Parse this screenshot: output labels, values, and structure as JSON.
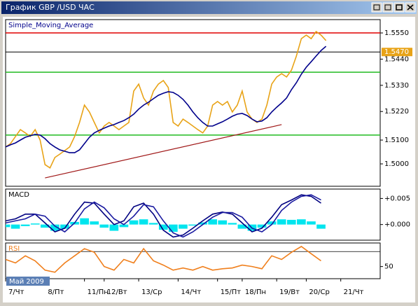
{
  "window": {
    "title": "График GBP /USD  ЧАС"
  },
  "cursor_label": "Май 2009",
  "chart_data": [
    {
      "type": "line",
      "title": "Simple_Moving_Average",
      "xlim": [
        0,
        76
      ],
      "ylim": [
        1.4906,
        1.5606
      ],
      "yticks": [
        {
          "value": 1.555,
          "label": "1.5550"
        },
        {
          "value": 1.544,
          "label": "1.5440"
        },
        {
          "value": 1.533,
          "label": "1.5330"
        },
        {
          "value": 1.522,
          "label": "1.5220"
        },
        {
          "value": 1.51,
          "label": "1.5100"
        },
        {
          "value": 1.5,
          "label": "1.5000"
        }
      ],
      "series": [
        {
          "color": "#e8a317",
          "values": [
            1.5071,
            1.5085,
            1.5115,
            1.5144,
            1.513,
            1.5115,
            1.5144,
            1.51,
            1.4997,
            1.4983,
            1.5027,
            1.5041,
            1.5056,
            1.5071,
            1.5115,
            1.5174,
            1.5247,
            1.5218,
            1.5174,
            1.513,
            1.5159,
            1.5174,
            1.5159,
            1.5144,
            1.5159,
            1.5174,
            1.5306,
            1.5335,
            1.5277,
            1.5247,
            1.5306,
            1.5335,
            1.535,
            1.5321,
            1.5174,
            1.5159,
            1.5188,
            1.5174,
            1.5159,
            1.5144,
            1.513,
            1.5159,
            1.5247,
            1.5262,
            1.5247,
            1.5262,
            1.5218,
            1.5247,
            1.5306,
            1.5218,
            1.5188,
            1.5174,
            1.5188,
            1.5247,
            1.5335,
            1.5365,
            1.5379,
            1.5365,
            1.5394,
            1.5453,
            1.5526,
            1.5541,
            1.5526,
            1.5556,
            1.5541,
            1.5518
          ]
        },
        {
          "color": "#00008b",
          "values": [
            1.5071,
            1.508,
            1.5088,
            1.51,
            1.5112,
            1.5118,
            1.5124,
            1.5121,
            1.5106,
            1.5085,
            1.5071,
            1.5059,
            1.5053,
            1.5047,
            1.5047,
            1.5059,
            1.5085,
            1.5112,
            1.513,
            1.5141,
            1.515,
            1.5159,
            1.5165,
            1.5174,
            1.5182,
            1.5194,
            1.5209,
            1.523,
            1.5247,
            1.5259,
            1.5274,
            1.5288,
            1.5297,
            1.5303,
            1.53,
            1.5288,
            1.5271,
            1.5247,
            1.5218,
            1.5194,
            1.5174,
            1.5159,
            1.5159,
            1.5168,
            1.5177,
            1.5188,
            1.52,
            1.5209,
            1.5212,
            1.5203,
            1.5188,
            1.5177,
            1.518,
            1.5194,
            1.5218,
            1.5238,
            1.5256,
            1.5277,
            1.5312,
            1.5341,
            1.5377,
            1.5406,
            1.5429,
            1.5453,
            1.5476,
            1.5494
          ]
        }
      ],
      "hlines": [
        {
          "value": 1.555,
          "color": "#e00000"
        },
        {
          "value": 1.5385,
          "color": "#22bb22"
        },
        {
          "value": 1.5121,
          "color": "#22bb22"
        }
      ],
      "trendline": {
        "x": [
          8,
          56
        ],
        "values": [
          1.4941,
          1.5165
        ],
        "color": "#a01818"
      },
      "last_price": {
        "value": 1.547,
        "label": "1.5470",
        "color": "#e8a317"
      }
    },
    {
      "type": "bar",
      "title": "MACD",
      "xlim": [
        0,
        38
      ],
      "ylim": [
        -0.003,
        0.0068
      ],
      "yticks": [
        {
          "value": 0.005,
          "label": "+0.005"
        },
        {
          "value": 0,
          "label": "+0.000"
        }
      ],
      "color": "#00e5ee",
      "values": [
        -0.0005,
        -0.0008,
        -0.0003,
        0.0002,
        -0.0006,
        -0.0012,
        -0.0008,
        0.0005,
        0.0012,
        0.0006,
        -0.0006,
        -0.0012,
        -0.0005,
        0.0008,
        0.001,
        0.0003,
        -0.001,
        -0.0014,
        -0.0008,
        -0.0002,
        0.0004,
        0.001,
        0.0008,
        0.0003,
        -0.0008,
        -0.0012,
        -0.0006,
        0.0006,
        0.001,
        0.0009,
        0.001,
        0.0006,
        -0.0008
      ],
      "series": [
        {
          "color": "#000080",
          "values": [
            0.0007,
            0.0011,
            0.002,
            0.002,
            0.0003,
            -0.0014,
            -0.0007,
            0.002,
            0.0043,
            0.0041,
            0.002,
            0,
            0.0007,
            0.0034,
            0.0041,
            0.002,
            -0.0011,
            -0.0024,
            -0.002,
            -0.0007,
            0.0007,
            0.002,
            0.0024,
            0.002,
            0.0003,
            -0.0014,
            -0.0007,
            0.0014,
            0.0038,
            0.0047,
            0.0057,
            0.0054,
            0.0041
          ]
        },
        {
          "color": "#1a1aa0",
          "values": [
            0.0003,
            0.0007,
            0.0011,
            0.002,
            0.0016,
            -0.0003,
            -0.0014,
            0.0003,
            0.003,
            0.0043,
            0.0032,
            0.0011,
            0,
            0.0016,
            0.0038,
            0.0034,
            0.0007,
            -0.0016,
            -0.0024,
            -0.0014,
            0,
            0.0014,
            0.0023,
            0.0023,
            0.0014,
            -0.0007,
            -0.0014,
            0,
            0.0027,
            0.0043,
            0.0054,
            0.0057,
            0.0047
          ]
        }
      ]
    },
    {
      "type": "line",
      "title": "RSI",
      "xlim": [
        0,
        38
      ],
      "ylim": [
        33.8,
        81.4
      ],
      "yticks": [
        50
      ],
      "levels": [
        70
      ],
      "overbought_color": "#ff00ff",
      "series": [
        {
          "color": "#f07f1c",
          "values": [
            59.5,
            54.8,
            64.3,
            57.6,
            45.2,
            42.4,
            54.8,
            64.3,
            73.8,
            69,
            50,
            45.2,
            59.5,
            54.8,
            73.8,
            57.6,
            51.9,
            45.2,
            48.1,
            45.2,
            50,
            45.2,
            47.1,
            48.1,
            51.9,
            50,
            47.1,
            64.3,
            59.5,
            69,
            76.7,
            67.1,
            57.6
          ]
        }
      ],
      "xticks": [
        {
          "value": 0,
          "label": "7/Чт"
        },
        {
          "value": 4,
          "label": "8/Пт"
        },
        {
          "value": 8,
          "label": "11/Пн"
        },
        {
          "value": 10,
          "label": "12/Вт"
        },
        {
          "value": 13.5,
          "label": "13/Ср"
        },
        {
          "value": 17.5,
          "label": "14/Чт"
        },
        {
          "value": 21.5,
          "label": "15/Пт"
        },
        {
          "value": 24,
          "label": "18/Пн"
        },
        {
          "value": 27.5,
          "label": "19/Вт"
        },
        {
          "value": 30.5,
          "label": "20/Ср"
        },
        {
          "value": 34,
          "label": "21/Чт"
        }
      ]
    }
  ]
}
